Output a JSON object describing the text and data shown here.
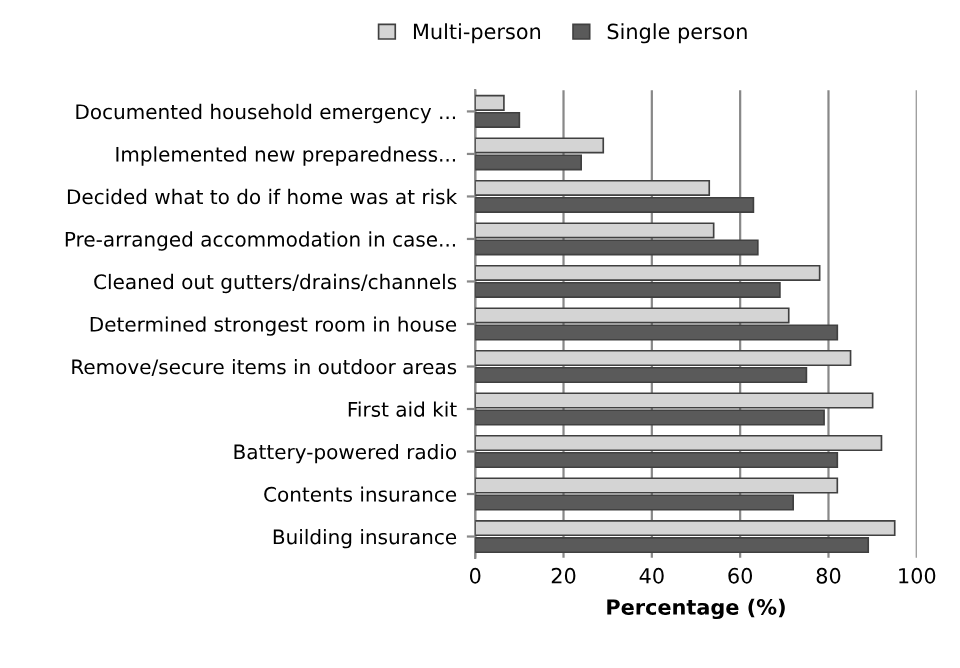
{
  "chart_data": {
    "type": "bar",
    "orientation": "horizontal",
    "xlabel": "Percentage (%)",
    "categories": [
      "Documented household emergency ...",
      "Implemented new preparedness...",
      "Decided what to do if home was at risk",
      "Pre-arranged accommodation in case...",
      "Cleaned out gutters/drains/channels",
      "Determined strongest room in house",
      "Remove/secure items in outdoor areas",
      "First aid kit",
      "Battery-powered radio",
      "Contents insurance",
      "Building insurance"
    ],
    "series": [
      {
        "name": "Multi-person",
        "color": "#d4d4d4",
        "values": [
          6.5,
          29,
          53,
          54,
          78,
          71,
          85,
          90,
          92,
          82,
          95
        ]
      },
      {
        "name": "Single person",
        "color": "#5a5a5a",
        "values": [
          10,
          24,
          63,
          64,
          69,
          82,
          75,
          79,
          82,
          72,
          89
        ]
      }
    ],
    "xlim": [
      0,
      100
    ],
    "xticks": [
      0,
      20,
      40,
      60,
      80,
      100
    ],
    "grid": "x",
    "legend": "top"
  }
}
